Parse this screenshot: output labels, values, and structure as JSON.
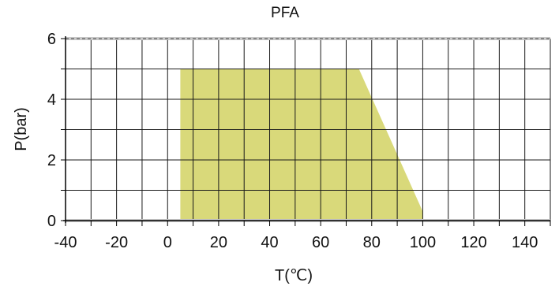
{
  "chart_data": {
    "type": "area",
    "title": "PFA",
    "xlabel": "T(℃)",
    "ylabel": "P(bar)",
    "xlim": [
      -40,
      150
    ],
    "ylim": [
      0,
      6
    ],
    "x_ticks": [
      -40,
      -20,
      0,
      20,
      40,
      60,
      80,
      100,
      120,
      140
    ],
    "y_ticks": [
      0,
      2,
      4,
      6
    ],
    "x_tick_labels": [
      "-40",
      "-20",
      "0",
      "20",
      "40",
      "60",
      "80",
      "100",
      "120",
      "140"
    ],
    "y_tick_labels": [
      "0",
      "2",
      "4",
      "6"
    ],
    "x_grid_step": 10,
    "y_grid_step": 1,
    "grid": true,
    "series": [
      {
        "points": [
          [
            5,
            0
          ],
          [
            5,
            5
          ],
          [
            75,
            5
          ],
          [
            100,
            0.3
          ],
          [
            100,
            0
          ]
        ],
        "color": "#d9d97a"
      }
    ]
  }
}
